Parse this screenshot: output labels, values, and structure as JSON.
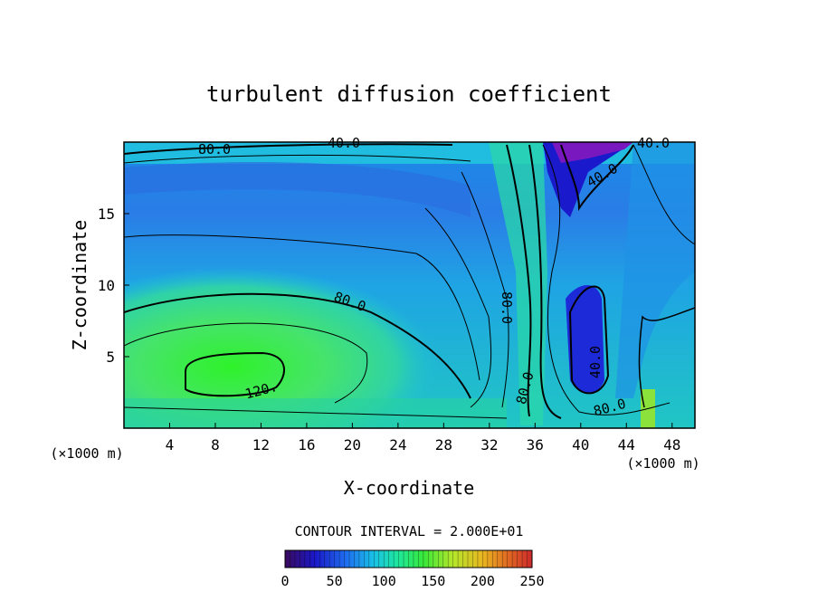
{
  "chart_data": {
    "type": "heatmap",
    "title": "turbulent diffusion coefficient",
    "xlabel": "X-coordinate",
    "ylabel": "Z-coordinate",
    "x_unit_left": "(×1000 m)",
    "x_unit_right": "(×1000 m)",
    "xlim": [
      0,
      50
    ],
    "ylim": [
      0,
      20
    ],
    "x_ticks": [
      4,
      8,
      12,
      16,
      20,
      24,
      28,
      32,
      36,
      40,
      44,
      48
    ],
    "y_ticks": [
      5,
      10,
      15
    ],
    "contour_interval_text": "CONTOUR INTERVAL = 2.000E+01",
    "contour_labels": [
      "80.0",
      "40.0",
      "40.0",
      "40.0",
      "80.0",
      "80.0",
      "120.",
      "40.0",
      "80.0",
      "80.0"
    ],
    "colorbar": {
      "min": 0,
      "max": 250,
      "ticks": [
        0,
        50,
        100,
        150,
        200,
        250
      ],
      "colors": [
        "#3a0a5e",
        "#1a18c8",
        "#1f6ff0",
        "#19c2e6",
        "#1ee89a",
        "#37e83a",
        "#b5e62a",
        "#e8b620",
        "#e06a22",
        "#cc2a2a"
      ]
    },
    "fill_colors": {
      "low": "#2a2ad8",
      "lowmid": "#2a7ce8",
      "mid": "#18b4e0",
      "midhigh": "#22d6b0",
      "high": "#3be85a",
      "peak": "#22f022",
      "vlow": "#7a18c0"
    }
  }
}
